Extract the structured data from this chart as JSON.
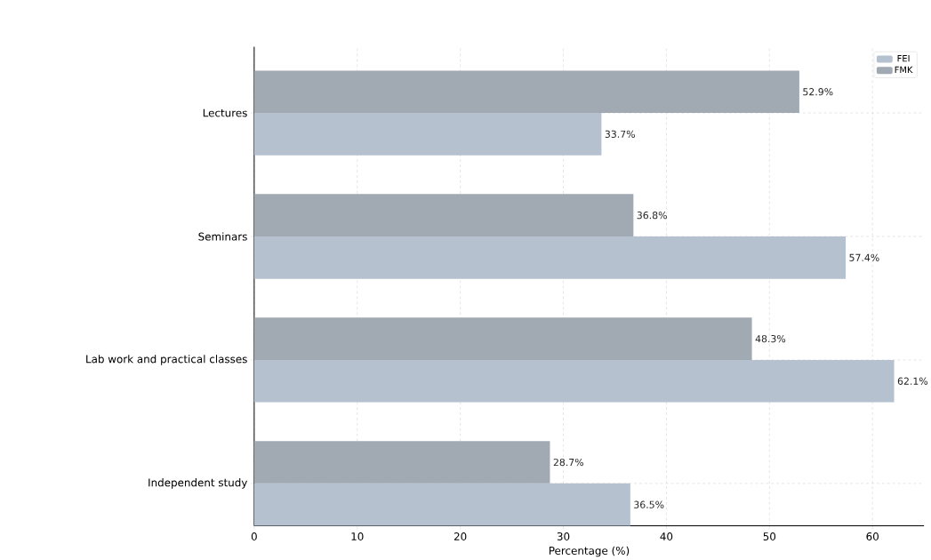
{
  "chart_data": {
    "type": "bar",
    "orientation": "horizontal",
    "xlabel": "Percentage (%)",
    "categories": [
      "Lectures",
      "Seminars",
      "Lab work and practical classes",
      "Independent study"
    ],
    "series": [
      {
        "name": "FEI",
        "color": "#b5c1cf",
        "values": [
          33.7,
          57.4,
          62.1,
          36.5
        ],
        "value_labels": [
          "33.7%",
          "57.4%",
          "62.1%",
          "36.5%"
        ]
      },
      {
        "name": "FMK",
        "color": "#a1a9b3",
        "values": [
          52.9,
          36.8,
          48.3,
          28.7
        ],
        "value_labels": [
          "52.9%",
          "36.8%",
          "48.3%",
          "28.7%"
        ]
      }
    ],
    "xlim": [
      0,
      65
    ],
    "xticks": [
      0,
      10,
      20,
      30,
      40,
      50,
      60
    ],
    "grid": true,
    "legend": "top right"
  }
}
